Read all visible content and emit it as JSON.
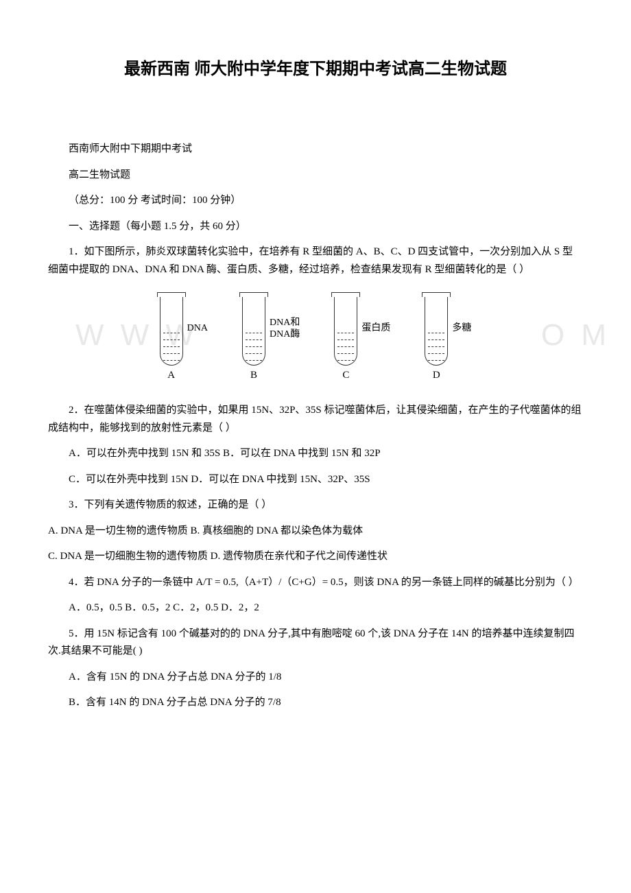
{
  "title": "最新西南 师大附中学年度下期期中考试高二生物试题",
  "header": {
    "line1": "西南师大附中下期期中考试",
    "line2": "高二生物试题",
    "line3": "（总分：100 分 考试时间：100 分钟）",
    "line4": "一、选择题（每小题 1.5 分，共 60 分）"
  },
  "q1": {
    "text": "1．如下图所示，肺炎双球菌转化实验中，在培养有 R 型细菌的 A、B、C、D 四支试管中，一次分别加入从 S 型细菌中提取的 DNA、DNA 和 DNA 酶、蛋白质、多糖，经过培养，检查结果发现有 R 型细菌转化的是（ ）"
  },
  "figure": {
    "tubes": [
      {
        "letter": "A",
        "label": "DNA"
      },
      {
        "letter": "B",
        "label": "DNA和\nDNA酶"
      },
      {
        "letter": "C",
        "label": "蛋白质"
      },
      {
        "letter": "D",
        "label": "多糖"
      }
    ],
    "watermark_left": "W W W",
    "watermark_right": "O M",
    "tube_stroke": "#333333",
    "dash_count": 5
  },
  "q2": {
    "text": "2．在噬菌体侵染细菌的实验中，如果用 15N、32P、35S 标记噬菌体后，让其侵染细菌，在产生的子代噬菌体的组成结构中，能够找到的放射性元素是（ ）",
    "optAB": "A．可以在外壳中找到 15N 和 35S B．可以在 DNA 中找到 15N 和 32P",
    "optCD": "C．可以在外壳中找到 15N  D．可以在 DNA 中找到 15N、32P、35S"
  },
  "q3": {
    "text": "3．下列有关遗传物质的叙述，正确的是（ ）",
    "line1": "A. DNA 是一切生物的遗传物质        B. 真核细胞的 DNA 都以染色体为载体",
    "line2": "C. DNA 是一切细胞生物的遗传物质      D. 遗传物质在亲代和子代之间传递性状"
  },
  "q4": {
    "text": "4．若 DNA 分子的一条链中 A/T = 0.5,（A+T）/（C+G）= 0.5，则该 DNA 的另一条链上同样的碱基比分别为（ ）",
    "opts": "A．0.5，0.5 B．0.5，2 C．2，0.5 D．2，2"
  },
  "q5": {
    "text": "5．用 15N 标记含有 100 个碱基对的的 DNA 分子,其中有胞嘧啶 60 个,该 DNA 分子在 14N 的培养基中连续复制四次.其结果不可能是( )",
    "optA": "A．含有 15N 的 DNA 分子占总 DNA 分子的 1/8",
    "optB": "B．含有 14N 的 DNA 分子占总 DNA 分子的 7/8"
  }
}
